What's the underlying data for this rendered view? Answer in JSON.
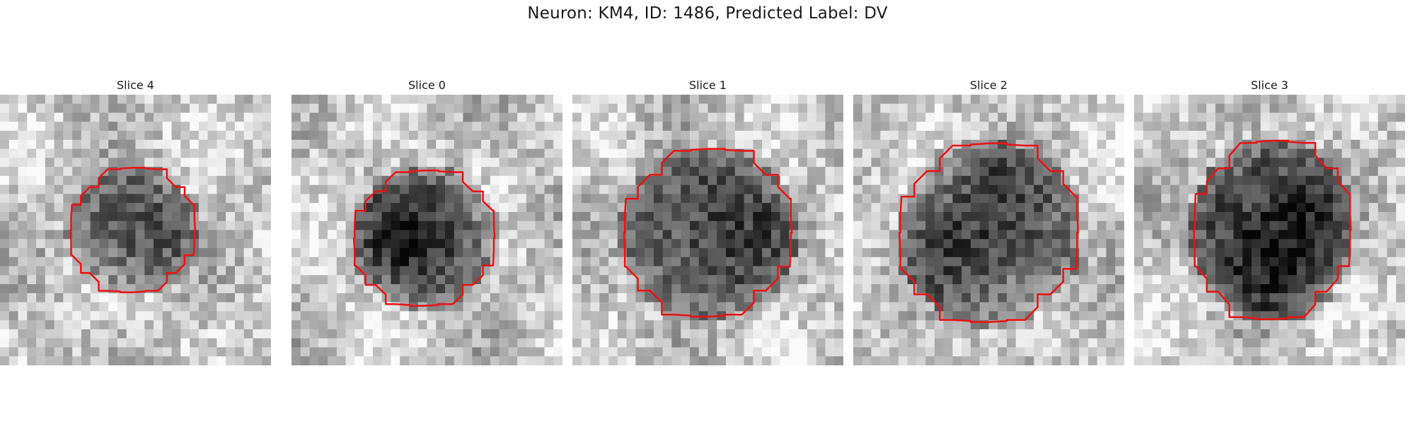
{
  "figure": {
    "title": "Neuron: KM4, ID: 1486, Predicted Label: DV"
  },
  "colors": {
    "contour": "#ee1111",
    "background": "#ffffff"
  },
  "slices": [
    {
      "label": "Slice 0",
      "seed": 11,
      "darkness": 0.62,
      "contour": "octagon-small"
    },
    {
      "label": "Slice 1",
      "seed": 23,
      "darkness": 0.58,
      "contour": "octagon-large"
    },
    {
      "label": "Slice 2",
      "seed": 37,
      "darkness": 0.55,
      "contour": "octagon-wide"
    },
    {
      "label": "Slice 3",
      "seed": 51,
      "darkness": 0.72,
      "contour": "octagon-tall"
    },
    {
      "label": "Slice 4",
      "seed": 67,
      "darkness": 0.5,
      "contour": "octagon-medium"
    }
  ]
}
